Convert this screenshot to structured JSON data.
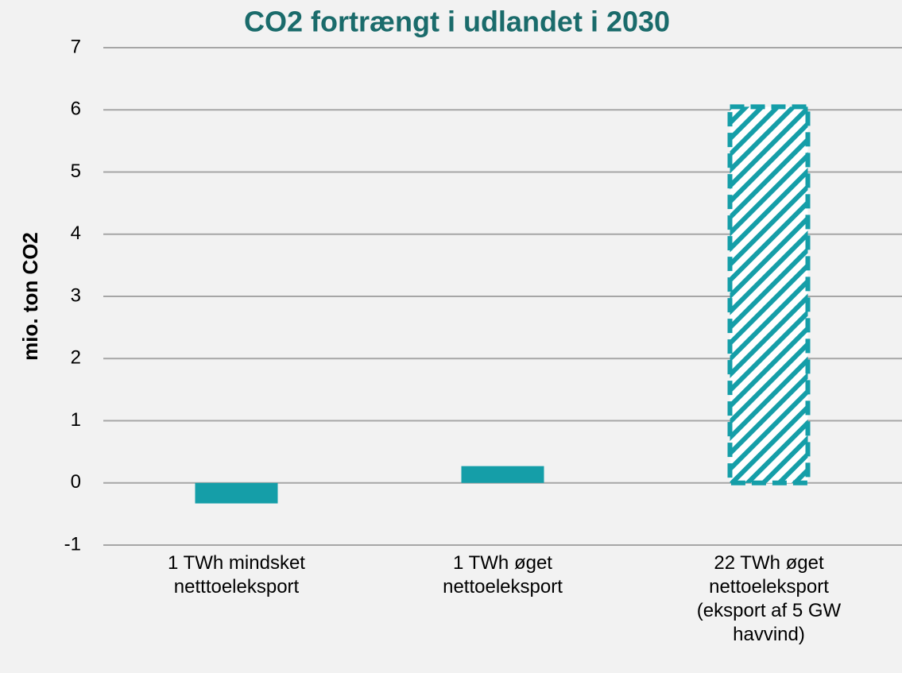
{
  "chart_data": {
    "type": "bar",
    "title": "CO2 fortrængt i udlandet i 2030",
    "y_label": "mio. ton CO2",
    "categories": [
      "1 TWh mindsket\nnetttoeleksport",
      "1 TWh øget\nnettoeleksport",
      "22 TWh øget\nnettoeleksport\n(eksport af 5 GW\nhavvind)"
    ],
    "values": [
      -0.33,
      0.27,
      6.05
    ],
    "color": "#159ea8",
    "bar_styles": [
      "solid",
      "solid",
      "hatched"
    ],
    "ylim": [
      -1,
      7
    ],
    "yticks": [
      -1,
      0,
      1,
      2,
      3,
      4,
      5,
      6,
      7
    ],
    "grid": true
  }
}
